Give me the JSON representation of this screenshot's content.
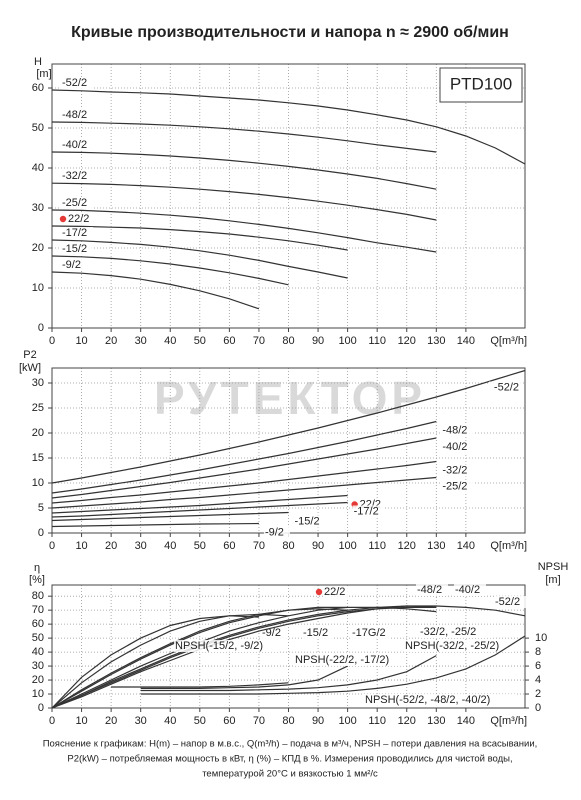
{
  "title": "Кривые производительности и напора n ≈ 2900 об/мин",
  "notes": [
    "Пояснение к графикам: H(m) – напор в м.в.с., Q(m³/h) – подача в м³/ч, NPSH – потери давления на всасывании,",
    "P2(kW) – потребляемая мощность в кВт, η (%) – КПД в %. Измерения проводились для чистой воды,",
    "температурой 20°C и вязкостью 1 мм²/с"
  ],
  "chart_data": [
    {
      "type": "line",
      "ylabel": "H",
      "yunit": "[m]",
      "xlabel": "Q[m³/h]",
      "box_label": "PTD100",
      "x": [
        0,
        10,
        20,
        30,
        40,
        50,
        60,
        70,
        80,
        90,
        100,
        110,
        120,
        130,
        140,
        150,
        160
      ],
      "xlim": [
        0,
        160
      ],
      "xticks": [
        0,
        10,
        20,
        30,
        40,
        50,
        60,
        70,
        80,
        90,
        100,
        110,
        120,
        130,
        140
      ],
      "ylim": [
        0,
        66
      ],
      "yticks": [
        0,
        10,
        20,
        30,
        40,
        50,
        60
      ],
      "grid": true,
      "color": "#333333",
      "label_pos": "start",
      "series": [
        {
          "name": "-52/2",
          "values": [
            59.5,
            59.3,
            59,
            58.8,
            58.5,
            58,
            57.5,
            57,
            56.3,
            55.5,
            54.5,
            53.3,
            52,
            50.3,
            48,
            45,
            41
          ]
        },
        {
          "name": "-48/2",
          "values": [
            51.5,
            51.4,
            51.2,
            51,
            50.7,
            50.3,
            49.8,
            49.2,
            48.5,
            47.7,
            46.8,
            45.8,
            44.9,
            44,
            null,
            null,
            null
          ]
        },
        {
          "name": "-40/2",
          "values": [
            44,
            43.9,
            43.7,
            43.4,
            43,
            42.5,
            41.9,
            41.2,
            40.4,
            39.5,
            38.5,
            37.4,
            36.1,
            34.7,
            null,
            null,
            null
          ]
        },
        {
          "name": "-32/2",
          "values": [
            36.2,
            36.1,
            35.9,
            35.6,
            35.2,
            34.7,
            34.1,
            33.4,
            32.6,
            31.7,
            30.7,
            29.6,
            28.4,
            27,
            null,
            null,
            null
          ]
        },
        {
          "name": "-25/2",
          "values": [
            29.5,
            29.4,
            29.1,
            28.7,
            28.2,
            27.6,
            26.8,
            25.9,
            24.9,
            23.8,
            22.6,
            21.3,
            20.2,
            19,
            null,
            null,
            null
          ]
        },
        {
          "name": "22/2",
          "marker_color": "#e53935",
          "values": [
            25.5,
            25.4,
            25.2,
            25,
            24.6,
            24.1,
            23.5,
            22.7,
            21.8,
            20.7,
            19.5,
            null,
            null,
            null,
            null,
            null,
            null
          ]
        },
        {
          "name": "-17/2",
          "values": [
            22,
            21.8,
            21.4,
            20.9,
            20.2,
            19.3,
            18.2,
            16.9,
            15.4,
            14,
            12.5,
            null,
            null,
            null,
            null,
            null,
            null
          ]
        },
        {
          "name": "-15/2",
          "values": [
            18,
            17.8,
            17.4,
            16.8,
            16,
            15,
            13.8,
            12.4,
            10.8,
            null,
            null,
            null,
            null,
            null,
            null,
            null,
            null
          ]
        },
        {
          "name": "-9/2",
          "values": [
            14,
            13.7,
            13.1,
            12.2,
            10.9,
            9.3,
            7.3,
            4.8,
            null,
            null,
            null,
            null,
            null,
            null,
            null,
            null,
            null
          ]
        }
      ]
    },
    {
      "type": "line",
      "ylabel": "P2",
      "yunit": "[kW]",
      "xlabel": "Q[m³/h]",
      "watermark": "РУТЕКТОР",
      "x": [
        0,
        10,
        20,
        30,
        40,
        50,
        60,
        70,
        80,
        90,
        100,
        110,
        120,
        130,
        140,
        150,
        160
      ],
      "xlim": [
        0,
        160
      ],
      "xticks": [
        0,
        10,
        20,
        30,
        40,
        50,
        60,
        70,
        80,
        90,
        100,
        110,
        120,
        130,
        140
      ],
      "ylim": [
        0,
        33
      ],
      "yticks": [
        0,
        5,
        10,
        15,
        20,
        25,
        30
      ],
      "grid": true,
      "color": "#333333",
      "label_pos": "end",
      "series": [
        {
          "name": "-52/2",
          "values": [
            10,
            11,
            12.1,
            13.2,
            14.4,
            15.6,
            16.9,
            18.2,
            19.6,
            21,
            22.5,
            24,
            25.6,
            27.2,
            28.9,
            30.7,
            32.5
          ]
        },
        {
          "name": "-48/2",
          "values": [
            8,
            8.8,
            9.7,
            10.6,
            11.6,
            12.6,
            13.7,
            14.8,
            15.9,
            17.1,
            18.3,
            19.6,
            20.9,
            22.3,
            null,
            null,
            null
          ]
        },
        {
          "name": "-40/2",
          "values": [
            7,
            7.7,
            8.5,
            9.3,
            10.1,
            11,
            11.9,
            12.8,
            13.8,
            14.8,
            15.8,
            16.8,
            17.9,
            19,
            null,
            null,
            null
          ]
        },
        {
          "name": "-32/2",
          "values": [
            6,
            6.5,
            7.1,
            7.6,
            8.2,
            8.8,
            9.4,
            10,
            10.7,
            11.4,
            12.1,
            12.8,
            13.5,
            14.3,
            null,
            null,
            null
          ]
        },
        {
          "name": "-25/2",
          "values": [
            5,
            5.4,
            5.8,
            6.2,
            6.7,
            7.1,
            7.6,
            8.1,
            8.6,
            9.1,
            9.6,
            10.1,
            10.6,
            11.1,
            null,
            null,
            null
          ]
        },
        {
          "name": "22/2",
          "marker_color": "#e53935",
          "values": [
            4,
            4.3,
            4.6,
            4.9,
            5.2,
            5.5,
            5.9,
            6.3,
            6.7,
            7.1,
            7.5,
            null,
            null,
            null,
            null,
            null,
            null
          ]
        },
        {
          "name": "-17/2",
          "values": [
            3.2,
            3.4,
            3.7,
            4,
            4.3,
            4.6,
            4.9,
            5.2,
            5.5,
            5.8,
            6.1,
            null,
            null,
            null,
            null,
            null,
            null
          ]
        },
        {
          "name": "-15/2",
          "values": [
            2.5,
            2.7,
            2.9,
            3.1,
            3.3,
            3.5,
            3.7,
            3.9,
            4.1,
            null,
            null,
            null,
            null,
            null,
            null,
            null,
            null
          ]
        },
        {
          "name": "-9/2",
          "values": [
            1.3,
            1.4,
            1.5,
            1.6,
            1.7,
            1.8,
            1.85,
            1.9,
            null,
            null,
            null,
            null,
            null,
            null,
            null,
            null,
            null
          ]
        }
      ]
    },
    {
      "type": "line",
      "ylabel": "η",
      "yunit": "[%]",
      "y2label": "NPSH",
      "y2unit": "[m]",
      "xlabel": "Q[m³/h]",
      "x": [
        0,
        10,
        20,
        30,
        40,
        50,
        60,
        70,
        80,
        90,
        100,
        110,
        120,
        130,
        140,
        150,
        160
      ],
      "xlim": [
        0,
        160
      ],
      "xticks": [
        0,
        10,
        20,
        30,
        40,
        50,
        60,
        70,
        80,
        90,
        100,
        110,
        120,
        130,
        140
      ],
      "ylim": [
        0,
        88
      ],
      "yticks": [
        0,
        10,
        20,
        30,
        40,
        50,
        60,
        70,
        80
      ],
      "y2lim": [
        0,
        17.6
      ],
      "y2ticks": [
        0,
        2,
        4,
        6,
        8,
        10
      ],
      "grid": true,
      "color": "#333333",
      "label_pos": "inside",
      "series": [
        {
          "name": "-9/2",
          "values": [
            0,
            22,
            38,
            50,
            59,
            64,
            66,
            65,
            null,
            null,
            null,
            null,
            null,
            null,
            null,
            null,
            null
          ]
        },
        {
          "name": "-15/2",
          "values": [
            0,
            18,
            33,
            45,
            55,
            62,
            66,
            67,
            66,
            null,
            null,
            null,
            null,
            null,
            null,
            null,
            null
          ]
        },
        {
          "name": "-17G/2",
          "values": [
            0,
            13,
            25,
            36,
            46,
            55,
            62,
            67,
            70,
            71,
            70,
            null,
            null,
            null,
            null,
            null,
            null
          ]
        },
        {
          "name": "22/2",
          "marker_color": "#e53935",
          "values": [
            0,
            12,
            24,
            35,
            45,
            54,
            61,
            66,
            70,
            72,
            72,
            null,
            null,
            null,
            null,
            null,
            null
          ]
        },
        {
          "name": "-32/2, -25/2",
          "values": [
            0,
            10,
            20,
            30,
            39,
            47,
            55,
            61,
            66,
            70,
            72,
            72,
            71,
            69,
            null,
            null,
            null
          ]
        },
        {
          "name": "-48/2",
          "values": [
            0,
            9,
            19,
            28,
            37,
            45,
            52,
            58,
            63,
            67,
            70,
            72,
            73,
            72,
            null,
            null,
            null
          ]
        },
        {
          "name": "-40/2",
          "values": [
            0,
            9,
            18,
            27,
            36,
            44,
            51,
            57,
            62,
            66,
            69,
            71,
            72,
            72,
            null,
            null,
            null
          ]
        },
        {
          "name": "-52/2",
          "values": [
            0,
            8,
            17,
            26,
            34,
            42,
            49,
            55,
            60,
            64,
            68,
            71,
            73,
            73,
            72,
            70,
            66
          ]
        },
        {
          "name": "NPSH(-15/2, -9/2)",
          "axis": "y2",
          "values": [
            null,
            null,
            3,
            3,
            3,
            3,
            3.1,
            3.3,
            3.6,
            null,
            null,
            null,
            null,
            null,
            null,
            null,
            null
          ]
        },
        {
          "name": "NPSH(-22/2, -17/2)",
          "axis": "y2",
          "values": [
            null,
            null,
            null,
            2.8,
            2.8,
            2.8,
            2.9,
            3,
            3.3,
            4,
            6,
            null,
            null,
            null,
            null,
            null,
            null
          ]
        },
        {
          "name": "NPSH(-32/2, -25/2)",
          "axis": "y2",
          "values": [
            null,
            null,
            null,
            2.5,
            2.5,
            2.5,
            2.5,
            2.6,
            2.7,
            2.9,
            3.3,
            4,
            5.2,
            7.5,
            null,
            null,
            null
          ]
        },
        {
          "name": "NPSH(-52/2, -48/2, -40/2)",
          "axis": "y2",
          "values": [
            null,
            null,
            null,
            2,
            2,
            2,
            2,
            2,
            2.1,
            2.2,
            2.4,
            2.8,
            3.4,
            4.3,
            5.6,
            7.6,
            10.3
          ]
        }
      ]
    }
  ]
}
